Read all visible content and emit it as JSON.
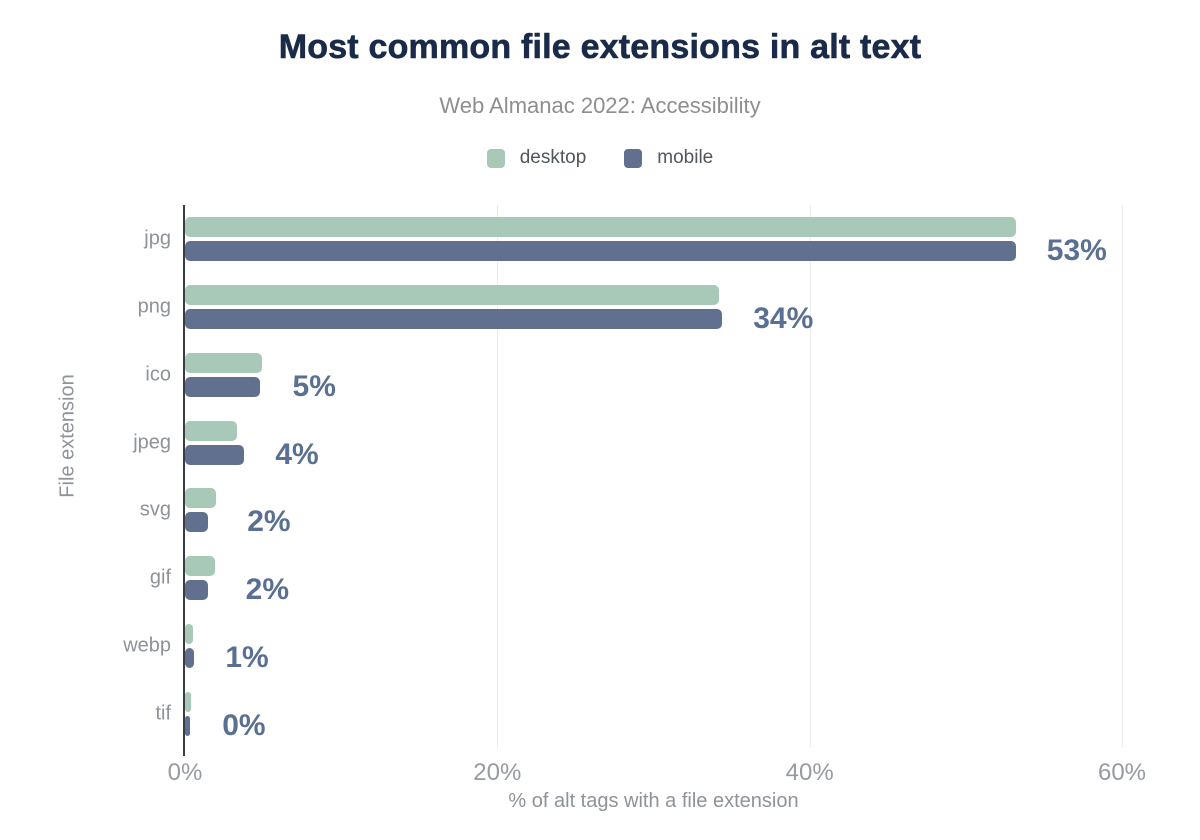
{
  "header": {
    "title": "Most common file extensions in alt text",
    "subtitle": "Web Almanac 2022: Accessibility"
  },
  "legend": [
    {
      "label": "desktop"
    },
    {
      "label": "mobile"
    }
  ],
  "chart_data": {
    "type": "bar",
    "orientation": "horizontal",
    "title": "Most common file extensions in alt text",
    "subtitle": "Web Almanac 2022: Accessibility",
    "categories": [
      "jpg",
      "png",
      "ico",
      "jpeg",
      "svg",
      "gif",
      "webp",
      "tif"
    ],
    "series": [
      {
        "name": "desktop",
        "color": "#a8c9b8",
        "values": [
          53.2,
          34.2,
          4.9,
          3.3,
          2.0,
          1.9,
          0.5,
          0.4
        ]
      },
      {
        "name": "mobile",
        "color": "#61708e",
        "values": [
          53.2,
          34.4,
          4.8,
          3.8,
          1.5,
          1.5,
          0.6,
          0.3
        ]
      }
    ],
    "value_labels": [
      "53%",
      "34%",
      "5%",
      "4%",
      "2%",
      "2%",
      "1%",
      "0%"
    ],
    "xlabel": "% of alt tags with a file extension",
    "ylabel": "File extension",
    "xlim": [
      0,
      60
    ],
    "xticks": [
      {
        "value": 0,
        "label": "0%"
      },
      {
        "value": 20,
        "label": "20%"
      },
      {
        "value": 40,
        "label": "40%"
      },
      {
        "value": 60,
        "label": "60%"
      }
    ],
    "grid": "vertical-lines-behind-bars",
    "legend_position": "top-center"
  },
  "colors": {
    "title_color": "#1a2b49",
    "subtitle_color": "#8e8e8e",
    "axis_text_color": "#8d9399",
    "tick_color": "#969ba1",
    "value_label_color": "#5a7092",
    "axis_line_color": "#3a3e42",
    "gridline_color": "#ececec"
  }
}
